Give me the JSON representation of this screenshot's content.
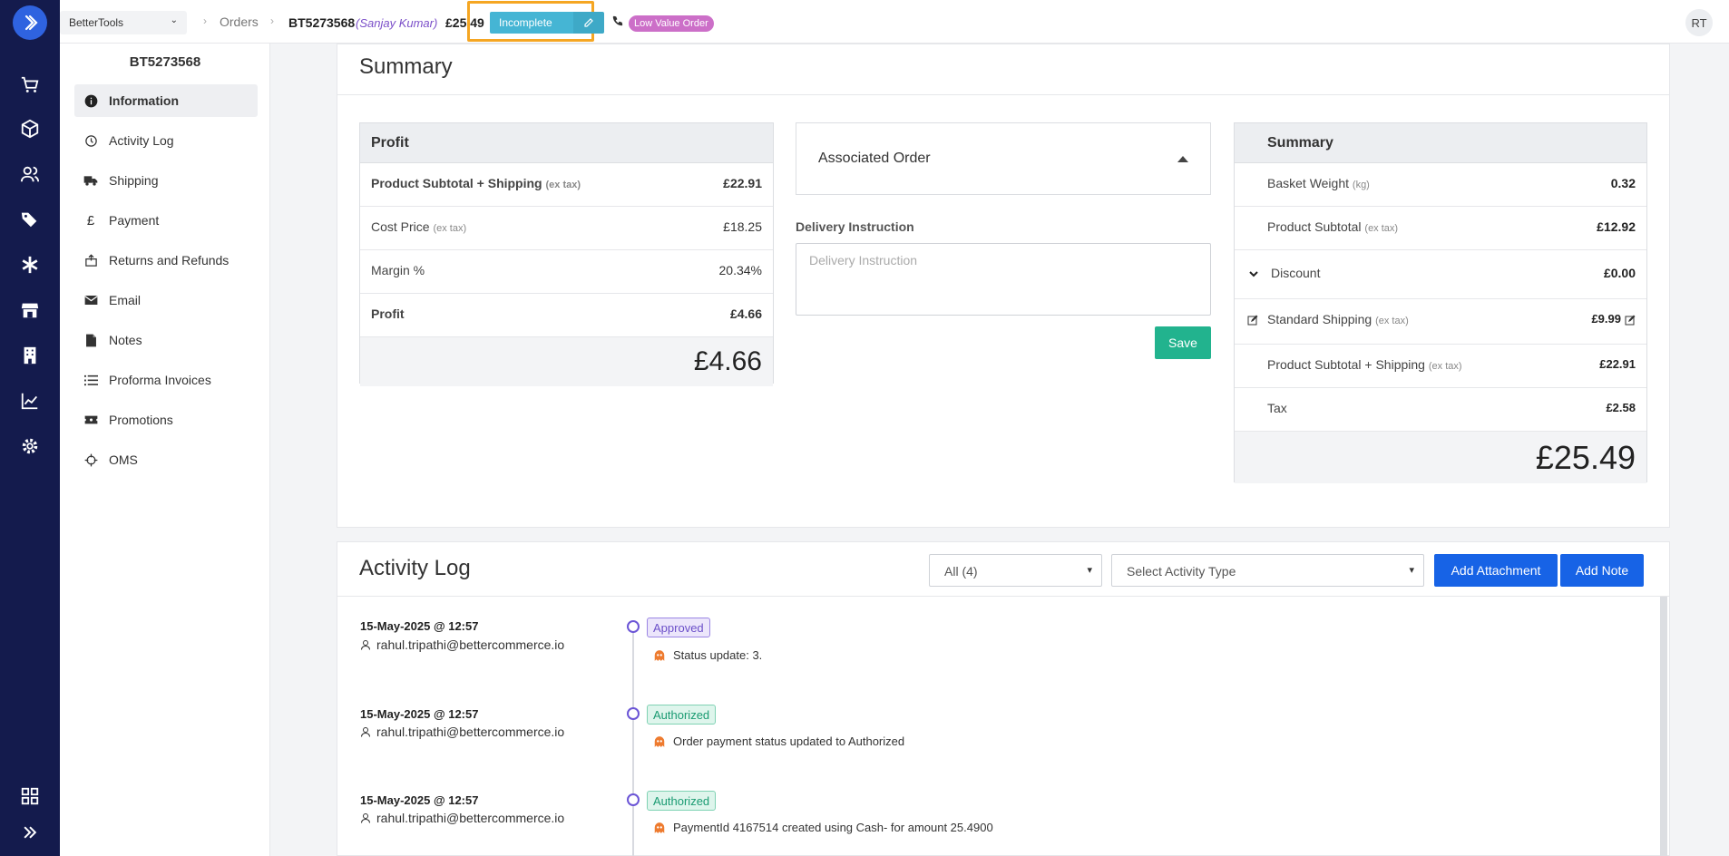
{
  "header": {
    "store": "BetterTools",
    "breadcrumb": "Orders",
    "order_id": "BT5273568",
    "customer": "(Sanjay Kumar)",
    "total": "£25.49",
    "status": "Incomplete",
    "badge": "Low Value Order",
    "avatar": "RT"
  },
  "sidenav": {
    "title": "BT5273568",
    "items": [
      {
        "label": "Information",
        "icon": "info-icon"
      },
      {
        "label": "Activity Log",
        "icon": "history-icon"
      },
      {
        "label": "Shipping",
        "icon": "truck-icon"
      },
      {
        "label": "Payment",
        "icon": "pound-icon"
      },
      {
        "label": "Returns and Refunds",
        "icon": "return-icon"
      },
      {
        "label": "Email",
        "icon": "email-icon"
      },
      {
        "label": "Notes",
        "icon": "note-icon"
      },
      {
        "label": "Proforma Invoices",
        "icon": "list-icon"
      },
      {
        "label": "Promotions",
        "icon": "ticket-icon"
      },
      {
        "label": "OMS",
        "icon": "crosshair-icon"
      }
    ]
  },
  "summary_card": {
    "title": "Summary",
    "profit": {
      "title": "Profit",
      "rows": [
        {
          "label": "Product Subtotal + Shipping",
          "note": "(ex tax)",
          "value": "£22.91"
        },
        {
          "label": "Cost Price",
          "note": "(ex tax)",
          "value": "£18.25"
        },
        {
          "label": "Margin %",
          "note": "",
          "value": "20.34%"
        },
        {
          "label": "Profit",
          "note": "",
          "value": "£4.66"
        }
      ],
      "total": "£4.66"
    },
    "associated_order": "Associated Order",
    "delivery_label": "Delivery Instruction",
    "delivery_placeholder": "Delivery Instruction",
    "save_label": "Save",
    "summary": {
      "title": "Summary",
      "rows": [
        {
          "label": "Basket Weight",
          "note": "(kg)",
          "value": "0.32"
        },
        {
          "label": "Product Subtotal",
          "note": "(ex tax)",
          "value": "£12.92"
        },
        {
          "label": "Discount",
          "note": "",
          "value": "£0.00"
        },
        {
          "label": "Standard Shipping",
          "note": "(ex tax)",
          "value": "£9.99"
        },
        {
          "label": "Product Subtotal + Shipping",
          "note": "(ex tax)",
          "value": "£22.91"
        },
        {
          "label": "Tax",
          "note": "",
          "value": "£2.58"
        }
      ],
      "total": "£25.49"
    }
  },
  "activity_log": {
    "title": "Activity Log",
    "filter": "All (4)",
    "type_placeholder": "Select Activity Type",
    "add_attachment": "Add Attachment",
    "add_note": "Add Note",
    "entries": [
      {
        "date": "15-May-2025 @ 12:57",
        "user": "rahul.tripathi@bettercommerce.io",
        "badge": "Approved",
        "text": "Status update: 3."
      },
      {
        "date": "15-May-2025 @ 12:57",
        "user": "rahul.tripathi@bettercommerce.io",
        "badge": "Authorized",
        "text": "Order payment status updated to Authorized"
      },
      {
        "date": "15-May-2025 @ 12:57",
        "user": "rahul.tripathi@bettercommerce.io",
        "badge": "Authorized",
        "text": "PaymentId 4167514 created using Cash- for amount 25.4900"
      }
    ]
  }
}
